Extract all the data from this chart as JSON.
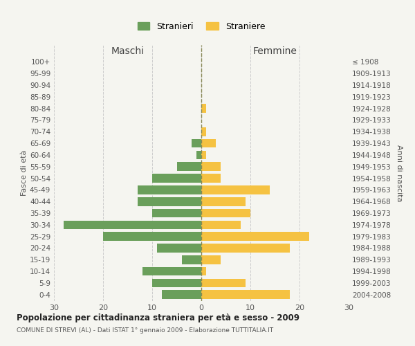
{
  "age_groups": [
    "0-4",
    "5-9",
    "10-14",
    "15-19",
    "20-24",
    "25-29",
    "30-34",
    "35-39",
    "40-44",
    "45-49",
    "50-54",
    "55-59",
    "60-64",
    "65-69",
    "70-74",
    "75-79",
    "80-84",
    "85-89",
    "90-94",
    "95-99",
    "100+"
  ],
  "birth_years": [
    "2004-2008",
    "1999-2003",
    "1994-1998",
    "1989-1993",
    "1984-1988",
    "1979-1983",
    "1974-1978",
    "1969-1973",
    "1964-1968",
    "1959-1963",
    "1954-1958",
    "1949-1953",
    "1944-1948",
    "1939-1943",
    "1934-1938",
    "1929-1933",
    "1924-1928",
    "1919-1923",
    "1914-1918",
    "1909-1913",
    "≤ 1908"
  ],
  "males": [
    8,
    10,
    12,
    4,
    9,
    20,
    28,
    10,
    13,
    13,
    10,
    5,
    1,
    2,
    0,
    0,
    0,
    0,
    0,
    0,
    0
  ],
  "females": [
    18,
    9,
    1,
    4,
    18,
    22,
    8,
    10,
    9,
    14,
    4,
    4,
    1,
    3,
    1,
    0,
    1,
    0,
    0,
    0,
    0
  ],
  "male_color": "#6a9f5b",
  "female_color": "#f5c242",
  "background_color": "#f5f5f0",
  "grid_color": "#cccccc",
  "title": "Popolazione per cittadinanza straniera per età e sesso - 2009",
  "subtitle": "COMUNE DI STREVI (AL) - Dati ISTAT 1° gennaio 2009 - Elaborazione TUTTITALIA.IT",
  "ylabel_left": "Fasce di età",
  "ylabel_right": "Anni di nascita",
  "xlabel_maschi": "Maschi",
  "xlabel_femmine": "Femmine",
  "legend_male": "Stranieri",
  "legend_female": "Straniere",
  "xlim": 30,
  "bar_height": 0.75
}
